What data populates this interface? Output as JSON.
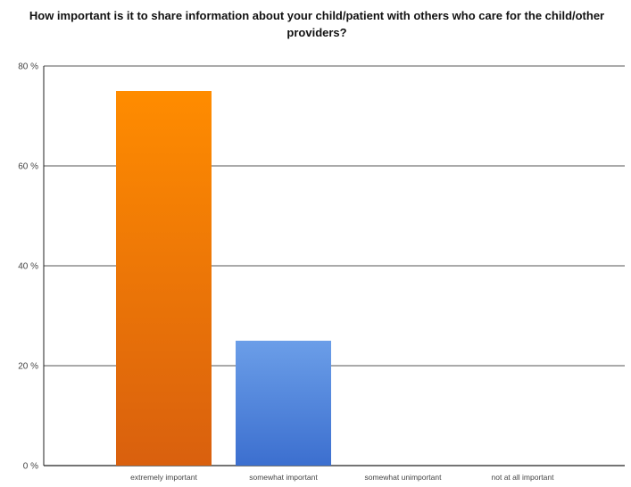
{
  "chart_data": {
    "type": "bar",
    "title": "How important is it to share information about your child/patient with others who care for the child/other providers?",
    "xlabel": "",
    "ylabel": "",
    "categories": [
      "extremely important",
      "somewhat important",
      "somewhat unimportant",
      "not at all important"
    ],
    "values": [
      75,
      25,
      0,
      0
    ],
    "ylim": [
      0,
      80
    ],
    "yticks": [
      0,
      20,
      40,
      60,
      80
    ],
    "ytick_suffix": " %",
    "grid": true,
    "legend": "none",
    "bar_colors": [
      {
        "top": "#ff8c00",
        "bottom": "#d9600e"
      },
      {
        "top": "#6b9ee8",
        "bottom": "#3c6fcf"
      },
      {
        "top": "#6b9ee8",
        "bottom": "#3c6fcf"
      },
      {
        "top": "#6b9ee8",
        "bottom": "#3c6fcf"
      }
    ]
  }
}
